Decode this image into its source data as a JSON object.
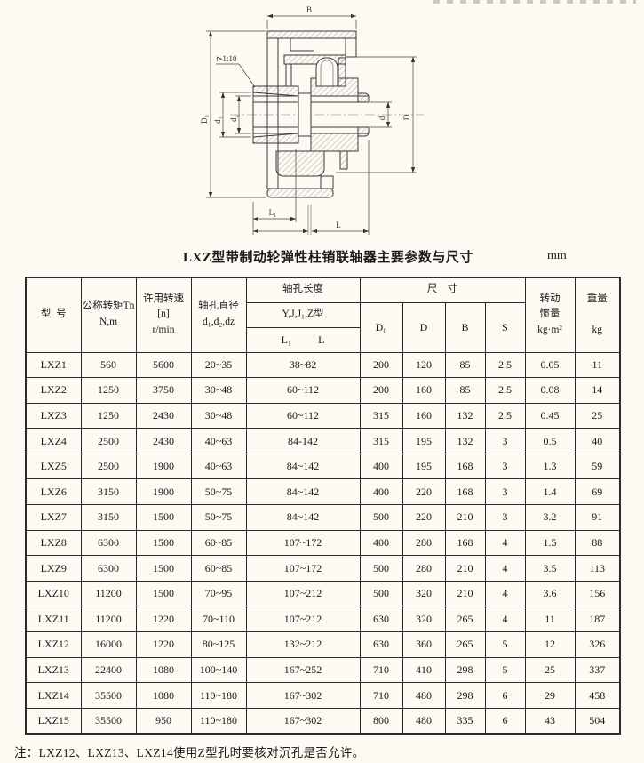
{
  "title": {
    "text": "LXZ型带制动轮弹性柱销联轴器主要参数与尺寸",
    "unit": "mm"
  },
  "note": "注：LXZ12、LXZ13、LXZ14使用Z型孔时要核对沉孔是否允许。",
  "drawing": {
    "labels": {
      "b": "B",
      "d0": "D₀",
      "d1": "d₁",
      "d2": "d₂",
      "d": "d",
      "big_d": "D",
      "l1": "L₁",
      "l": "L",
      "taper": "⊳1:10"
    }
  },
  "table": {
    "header": {
      "model": "型  号",
      "torque": "公称转矩Tn\nN,m",
      "speed": "许用转速\n[n]\nr/min",
      "bore_diameter": "轴孔直径\nd₁,d₂,dz",
      "bore_length": "轴孔长度",
      "bore_types": "Y,J,J₁,Z型",
      "bore_len_l1": "L₁",
      "bore_len_l": "L",
      "dimensions": "尺    寸",
      "d0": "D₀",
      "d": "D",
      "b": "B",
      "s": "S",
      "inertia": "转动\n惯量\nkg·m²",
      "weight": "重量\n\nkg"
    },
    "rows": [
      [
        "LXZ1",
        "560",
        "5600",
        "20~35",
        "38~82",
        "200",
        "120",
        "85",
        "2.5",
        "0.05",
        "11"
      ],
      [
        "LXZ2",
        "1250",
        "3750",
        "30~48",
        "60~112",
        "200",
        "160",
        "85",
        "2.5",
        "0.08",
        "14"
      ],
      [
        "LXZ3",
        "1250",
        "2430",
        "30~48",
        "60~112",
        "315",
        "160",
        "132",
        "2.5",
        "0.45",
        "25"
      ],
      [
        "LXZ4",
        "2500",
        "2430",
        "40~63",
        "84-142",
        "315",
        "195",
        "132",
        "3",
        "0.5",
        "40"
      ],
      [
        "LXZ5",
        "2500",
        "1900",
        "40~63",
        "84~142",
        "400",
        "195",
        "168",
        "3",
        "1.3",
        "59"
      ],
      [
        "LXZ6",
        "3150",
        "1900",
        "50~75",
        "84~142",
        "400",
        "220",
        "168",
        "3",
        "1.4",
        "69"
      ],
      [
        "LXZ7",
        "3150",
        "1500",
        "50~75",
        "84~142",
        "500",
        "220",
        "210",
        "3",
        "3.2",
        "91"
      ],
      [
        "LXZ8",
        "6300",
        "1500",
        "60~85",
        "107~172",
        "400",
        "280",
        "168",
        "4",
        "1.5",
        "88"
      ],
      [
        "LXZ9",
        "6300",
        "1500",
        "60~85",
        "107~172",
        "500",
        "280",
        "210",
        "4",
        "3.5",
        "113"
      ],
      [
        "LXZ10",
        "11200",
        "1500",
        "70~95",
        "107~212",
        "500",
        "320",
        "210",
        "4",
        "3.6",
        "156"
      ],
      [
        "LXZ11",
        "11200",
        "1220",
        "70~110",
        "107~212",
        "630",
        "320",
        "265",
        "4",
        "11",
        "187"
      ],
      [
        "LXZ12",
        "16000",
        "1220",
        "80~125",
        "132~212",
        "630",
        "360",
        "265",
        "5",
        "12",
        "326"
      ],
      [
        "LXZ13",
        "22400",
        "1080",
        "100~140",
        "167~252",
        "710",
        "410",
        "298",
        "5",
        "25",
        "337"
      ],
      [
        "LXZ14",
        "35500",
        "1080",
        "110~180",
        "167~302",
        "710",
        "480",
        "298",
        "6",
        "29",
        "458"
      ],
      [
        "LXZ15",
        "35500",
        "950",
        "110~180",
        "167~302",
        "800",
        "480",
        "335",
        "6",
        "43",
        "504"
      ]
    ]
  }
}
